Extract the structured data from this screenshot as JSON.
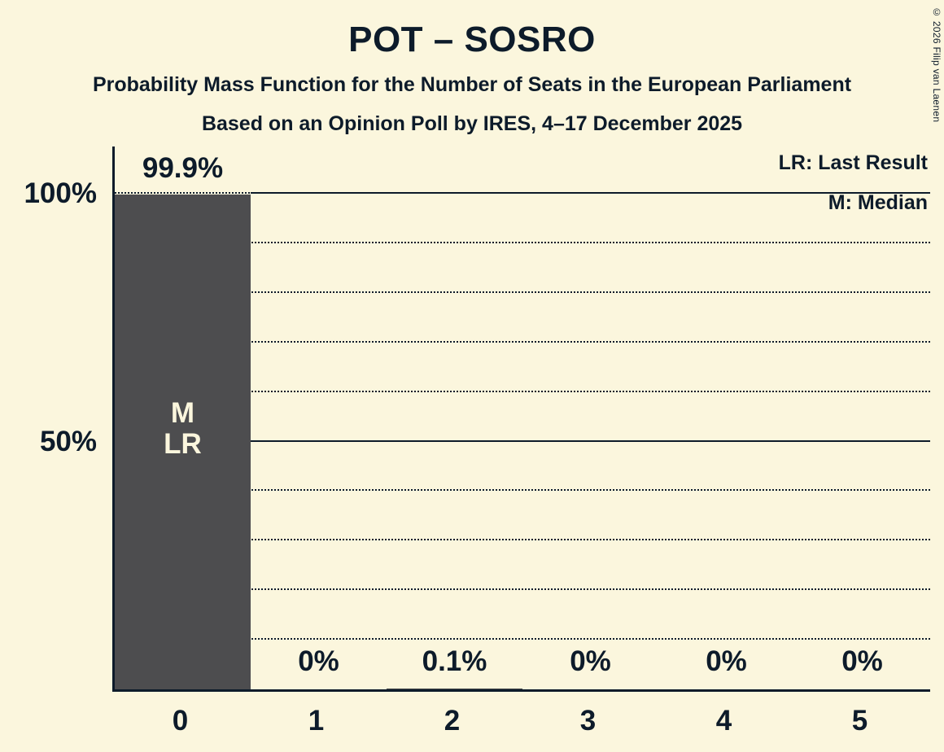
{
  "title": "POT – SOSRO",
  "subtitle1": "Probability Mass Function for the Number of Seats in the European Parliament",
  "subtitle2": "Based on an Opinion Poll by IRES, 4–17 December 2025",
  "copyright": "© 2026 Filip van Laenen",
  "legend": {
    "lr": "LR: Last Result",
    "m": "M: Median"
  },
  "colors": {
    "background": "#FBF6DD",
    "text": "#0D1B2A",
    "bar": "#4D4D4F",
    "bar_label": "#FBF6DD"
  },
  "chart_data": {
    "type": "bar",
    "title": "POT – SOSRO",
    "categories": [
      "0",
      "1",
      "2",
      "3",
      "4",
      "5"
    ],
    "values": [
      99.9,
      0,
      0.1,
      0,
      0,
      0
    ],
    "value_labels": [
      "99.9%",
      "0%",
      "0.1%",
      "0%",
      "0%",
      "0%"
    ],
    "bar_annotations": [
      [
        "M",
        "LR"
      ],
      [],
      [],
      [],
      [],
      []
    ],
    "ylim": [
      0,
      100
    ],
    "y_ticks": [
      {
        "value": 100,
        "label": "100%"
      },
      {
        "value": 50,
        "label": "50%"
      }
    ],
    "gridlines": {
      "dotted": [
        10,
        20,
        30,
        40,
        60,
        70,
        80,
        90,
        100
      ],
      "solid": [
        {
          "value": 100,
          "starts_at_category": 1
        },
        {
          "value": 50,
          "starts_at_category": 0
        }
      ]
    },
    "legend_position": "top-right",
    "grid": true
  }
}
